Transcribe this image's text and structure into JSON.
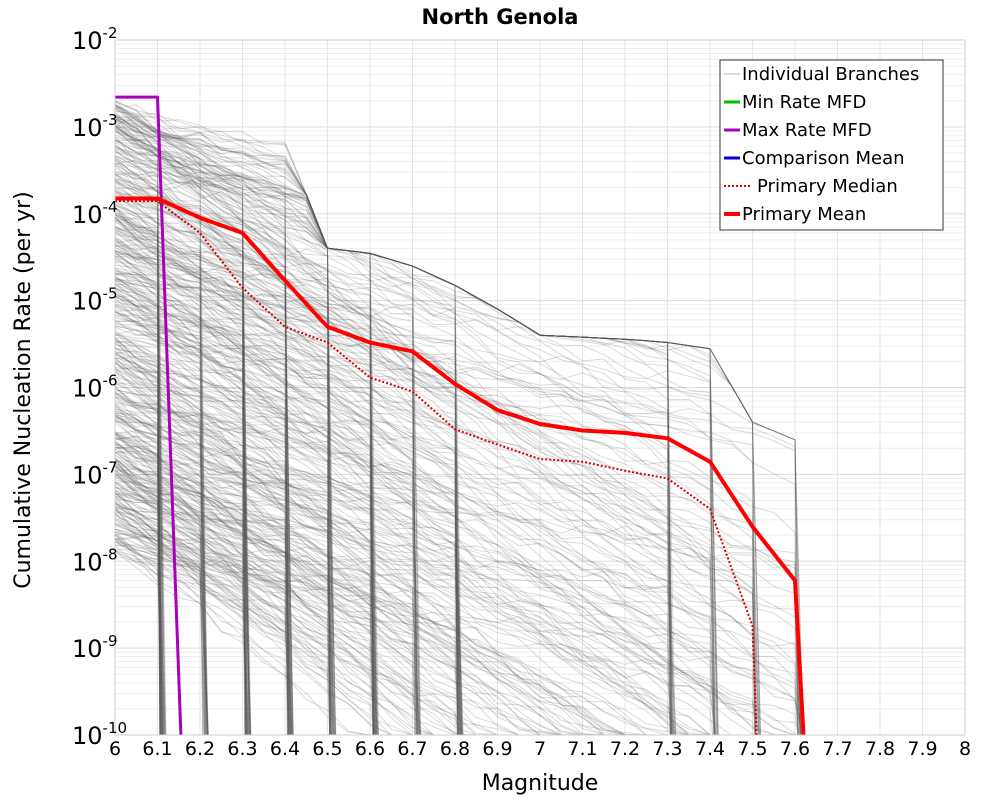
{
  "chart_data": {
    "type": "line",
    "title": "North Genola",
    "xlabel": "Magnitude",
    "ylabel": "Cumulative Nucleation Rate (per yr)",
    "x_ticks": [
      "6",
      "6.1",
      "6.2",
      "6.3",
      "6.4",
      "6.5",
      "6.6",
      "6.7",
      "6.8",
      "6.9",
      "7",
      "7.1",
      "7.2",
      "7.3",
      "7.4",
      "7.5",
      "7.6",
      "7.7",
      "7.8",
      "7.9",
      "8"
    ],
    "y_ticks": [
      {
        "base": "10",
        "exp": "-10"
      },
      {
        "base": "10",
        "exp": "-9"
      },
      {
        "base": "10",
        "exp": "-8"
      },
      {
        "base": "10",
        "exp": "-7"
      },
      {
        "base": "10",
        "exp": "-6"
      },
      {
        "base": "10",
        "exp": "-5"
      },
      {
        "base": "10",
        "exp": "-4"
      },
      {
        "base": "10",
        "exp": "-3"
      },
      {
        "base": "10",
        "exp": "-2"
      }
    ],
    "xlim": [
      6,
      8
    ],
    "ylim": [
      1e-10,
      0.01
    ],
    "y_scale": "log",
    "grid": true,
    "legend_position": "top-right",
    "series": [
      {
        "name": "Individual Branches",
        "color": "#555555",
        "style": "thin",
        "note_values": "many branch curves, drawn procedurally between min and max envelopes",
        "upper_envelope_x": [
          6.0,
          6.1,
          6.2,
          6.3,
          6.4,
          6.5,
          6.6,
          6.7,
          6.8,
          6.9,
          7.0,
          7.1,
          7.2,
          7.3,
          7.4,
          7.5,
          7.6
        ],
        "upper_envelope_y": [
          0.002,
          0.0018,
          0.0014,
          0.0013,
          0.0007,
          4e-05,
          3.5e-05,
          2.5e-05,
          1.5e-05,
          8e-06,
          4e-06,
          3.8e-06,
          3.6e-06,
          3.3e-06,
          2.8e-06,
          4e-07,
          2.5e-07
        ]
      },
      {
        "name": "Min Rate MFD",
        "color": "#00bb00",
        "style": "solid",
        "x": [],
        "y": []
      },
      {
        "name": "Max Rate MFD",
        "color": "#aa00bb",
        "style": "solid",
        "x": [
          6.0,
          6.1,
          6.155
        ],
        "y": [
          0.0022,
          0.0022,
          1e-10
        ]
      },
      {
        "name": "Comparison Mean",
        "color": "#0000dd",
        "style": "solid",
        "x": [],
        "y": []
      },
      {
        "name": "Primary Median",
        "color": "#dd0000",
        "style": "dotted",
        "x": [
          6.0,
          6.1,
          6.2,
          6.3,
          6.4,
          6.5,
          6.6,
          6.7,
          6.8,
          6.9,
          7.0,
          7.1,
          7.2,
          7.3,
          7.4,
          7.5,
          7.51
        ],
        "y": [
          0.00014,
          0.00014,
          6e-05,
          1.4e-05,
          5e-06,
          3.3e-06,
          1.3e-06,
          9e-07,
          3.3e-07,
          2.2e-07,
          1.5e-07,
          1.4e-07,
          1.1e-07,
          9e-08,
          4e-08,
          1.8e-09,
          1e-10
        ]
      },
      {
        "name": "Primary Mean",
        "color": "#ff0000",
        "style": "thick",
        "x": [
          6.0,
          6.1,
          6.2,
          6.3,
          6.4,
          6.5,
          6.6,
          6.7,
          6.8,
          6.9,
          7.0,
          7.1,
          7.2,
          7.3,
          7.4,
          7.5,
          7.6,
          7.62
        ],
        "y": [
          0.00015,
          0.00015,
          9e-05,
          6e-05,
          1.7e-05,
          5e-06,
          3.3e-06,
          2.6e-06,
          1.1e-06,
          5.5e-07,
          3.8e-07,
          3.2e-07,
          3e-07,
          2.6e-07,
          1.4e-07,
          2.5e-08,
          6e-09,
          1e-10
        ]
      }
    ]
  }
}
